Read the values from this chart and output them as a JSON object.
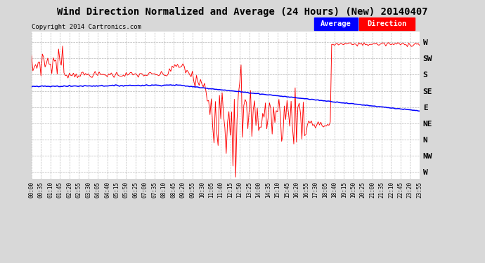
{
  "title": "Wind Direction Normalized and Average (24 Hours) (New) 20140407",
  "copyright": "Copyright 2014 Cartronics.com",
  "background_color": "#d8d8d8",
  "plot_bg_color": "#ffffff",
  "y_labels": [
    "W",
    "SW",
    "S",
    "SE",
    "E",
    "NE",
    "N",
    "NW",
    "W"
  ],
  "y_values": [
    360,
    315,
    270,
    225,
    180,
    135,
    90,
    45,
    0
  ],
  "ylim": [
    -20,
    390
  ],
  "legend_avg_color": "#0000cc",
  "legend_dir_color": "#ff0000",
  "legend_avg_label": "Average",
  "legend_dir_label": "Direction",
  "grid_color": "#999999",
  "title_fontsize": 10,
  "copyright_fontsize": 6.5,
  "ylabel_fontsize": 8,
  "xlabel_fontsize": 5.5
}
